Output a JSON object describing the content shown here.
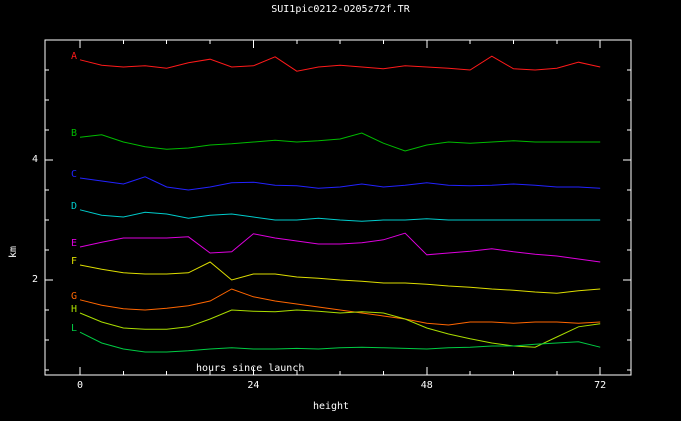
{
  "title": "SUI1pic0212-O205z72f.TR",
  "chart_data": {
    "type": "line",
    "title": "SUI1pic0212-O205z72f.TR",
    "xlabel": "hours since launch",
    "outer_xlabel": "height",
    "ylabel": "km",
    "background": "#000000",
    "axis_color": "#ffffff",
    "grid": false,
    "legend_position": "left-of-lines",
    "xlim": [
      -4.85,
      76.27
    ],
    "ylim": [
      0.4167,
      6.0
    ],
    "xticks": [
      0,
      24,
      48,
      72
    ],
    "yticks": [
      2,
      4
    ],
    "x_minor_step": 6,
    "y_minor_step": 0.5,
    "x": [
      0,
      3,
      6,
      9,
      12,
      15,
      18,
      21,
      24,
      27,
      30,
      33,
      36,
      39,
      42,
      45,
      48,
      51,
      54,
      57,
      60,
      63,
      66,
      69,
      72
    ],
    "series": [
      {
        "label": "A",
        "color": "#ff1a1a",
        "values": [
          5.67,
          5.58,
          5.55,
          5.57,
          5.53,
          5.62,
          5.68,
          5.55,
          5.57,
          5.72,
          5.48,
          5.55,
          5.58,
          5.55,
          5.52,
          5.57,
          5.55,
          5.53,
          5.5,
          5.73,
          5.52,
          5.5,
          5.53,
          5.63,
          5.55
        ]
      },
      {
        "label": "B",
        "color": "#00bb00",
        "values": [
          4.38,
          4.42,
          4.3,
          4.22,
          4.18,
          4.2,
          4.25,
          4.27,
          4.3,
          4.33,
          4.3,
          4.32,
          4.35,
          4.45,
          4.28,
          4.15,
          4.25,
          4.3,
          4.28,
          4.3,
          4.32,
          4.3,
          4.3,
          4.3,
          4.3
        ]
      },
      {
        "label": "C",
        "color": "#2222ff",
        "values": [
          3.7,
          3.65,
          3.6,
          3.72,
          3.55,
          3.5,
          3.55,
          3.62,
          3.63,
          3.58,
          3.57,
          3.53,
          3.55,
          3.6,
          3.55,
          3.58,
          3.62,
          3.58,
          3.57,
          3.58,
          3.6,
          3.58,
          3.55,
          3.55,
          3.53
        ]
      },
      {
        "label": "D",
        "color": "#00cccc",
        "values": [
          3.17,
          3.08,
          3.05,
          3.13,
          3.1,
          3.03,
          3.08,
          3.1,
          3.05,
          3.0,
          3.0,
          3.03,
          3.0,
          2.98,
          3.0,
          3.0,
          3.02,
          3.0,
          3.0,
          3.0,
          3.0,
          3.0,
          3.0,
          3.0,
          3.0
        ]
      },
      {
        "label": "E",
        "color": "#dd00dd",
        "values": [
          2.55,
          2.63,
          2.7,
          2.7,
          2.7,
          2.72,
          2.45,
          2.47,
          2.77,
          2.7,
          2.65,
          2.6,
          2.6,
          2.62,
          2.67,
          2.78,
          2.42,
          2.45,
          2.48,
          2.52,
          2.47,
          2.43,
          2.4,
          2.35,
          2.3
        ]
      },
      {
        "label": "F",
        "color": "#dddd00",
        "values": [
          2.25,
          2.18,
          2.12,
          2.1,
          2.1,
          2.12,
          2.3,
          2.0,
          2.1,
          2.1,
          2.05,
          2.03,
          2.0,
          1.98,
          1.95,
          1.95,
          1.93,
          1.9,
          1.88,
          1.85,
          1.83,
          1.8,
          1.78,
          1.82,
          1.85
        ]
      },
      {
        "label": "G",
        "color": "#ff6600",
        "values": [
          1.67,
          1.58,
          1.52,
          1.5,
          1.53,
          1.57,
          1.65,
          1.85,
          1.72,
          1.65,
          1.6,
          1.55,
          1.5,
          1.45,
          1.4,
          1.35,
          1.28,
          1.25,
          1.3,
          1.3,
          1.28,
          1.3,
          1.3,
          1.28,
          1.3
        ]
      },
      {
        "label": "H",
        "color": "#aadd00",
        "values": [
          1.45,
          1.3,
          1.2,
          1.18,
          1.18,
          1.22,
          1.35,
          1.5,
          1.48,
          1.47,
          1.5,
          1.48,
          1.45,
          1.47,
          1.45,
          1.35,
          1.2,
          1.1,
          1.02,
          0.95,
          0.9,
          0.88,
          1.05,
          1.22,
          1.27
        ]
      },
      {
        "label": "L",
        "color": "#00cc44",
        "values": [
          1.13,
          0.95,
          0.85,
          0.8,
          0.8,
          0.82,
          0.85,
          0.87,
          0.85,
          0.85,
          0.86,
          0.85,
          0.87,
          0.88,
          0.87,
          0.86,
          0.85,
          0.87,
          0.88,
          0.9,
          0.9,
          0.93,
          0.95,
          0.97,
          0.88
        ]
      }
    ]
  }
}
